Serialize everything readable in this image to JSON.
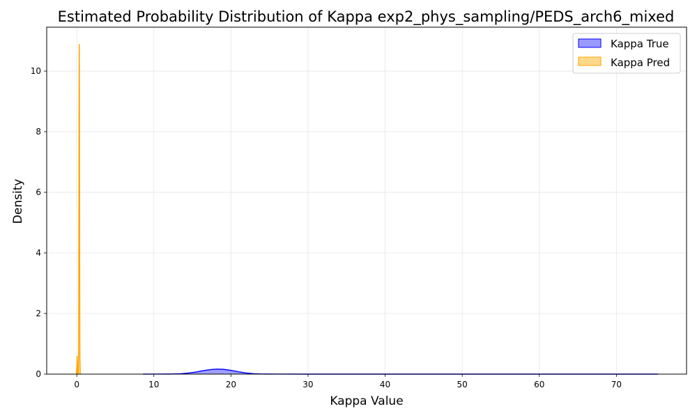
{
  "chart_data": {
    "type": "area",
    "title": "Estimated Probability Distribution of Kappa exp2_phys_sampling/PEDS_arch6_mixed",
    "xlabel": "Kappa Value",
    "ylabel": "Density",
    "xlim": [
      -3.9,
      79.1
    ],
    "ylim": [
      0,
      11.45
    ],
    "xticks": [
      "0",
      "10",
      "20",
      "30",
      "40",
      "50",
      "60",
      "70"
    ],
    "yticks": [
      "0",
      "2",
      "4",
      "6",
      "8",
      "10"
    ],
    "grid": true,
    "legend_position": "top-right",
    "series": [
      {
        "name": "Kappa True",
        "color": "#0000ff",
        "fill": "#9a9aff",
        "x": [
          8.6,
          10,
          12,
          13.5,
          14.5,
          15.5,
          16.5,
          17.5,
          18.2,
          19,
          20,
          21,
          22,
          23,
          24,
          26,
          30,
          40,
          50,
          60,
          70,
          75.4
        ],
        "y": [
          0,
          0.0005,
          0.003,
          0.012,
          0.035,
          0.07,
          0.12,
          0.155,
          0.165,
          0.158,
          0.125,
          0.075,
          0.035,
          0.012,
          0.004,
          0.0005,
          0.0001,
          0.0001,
          0.0001,
          0.0001,
          0.0001,
          0
        ]
      },
      {
        "name": "Kappa Pred",
        "color": "#ffa500",
        "fill": "#ffd98a",
        "x": [
          -0.05,
          0.02,
          0.05,
          0.08,
          0.11,
          0.15,
          0.19,
          0.23,
          0.25,
          0.27,
          0.29,
          0.31,
          0.33,
          0.35,
          0.37,
          0.39,
          0.41,
          0.45,
          0.48
        ],
        "y": [
          0,
          0.3,
          0.6,
          0.3,
          0,
          0,
          0,
          0.5,
          2.0,
          5.0,
          8.5,
          10.6,
          10.9,
          9.5,
          6.0,
          2.5,
          0.6,
          0.05,
          0
        ]
      }
    ]
  }
}
